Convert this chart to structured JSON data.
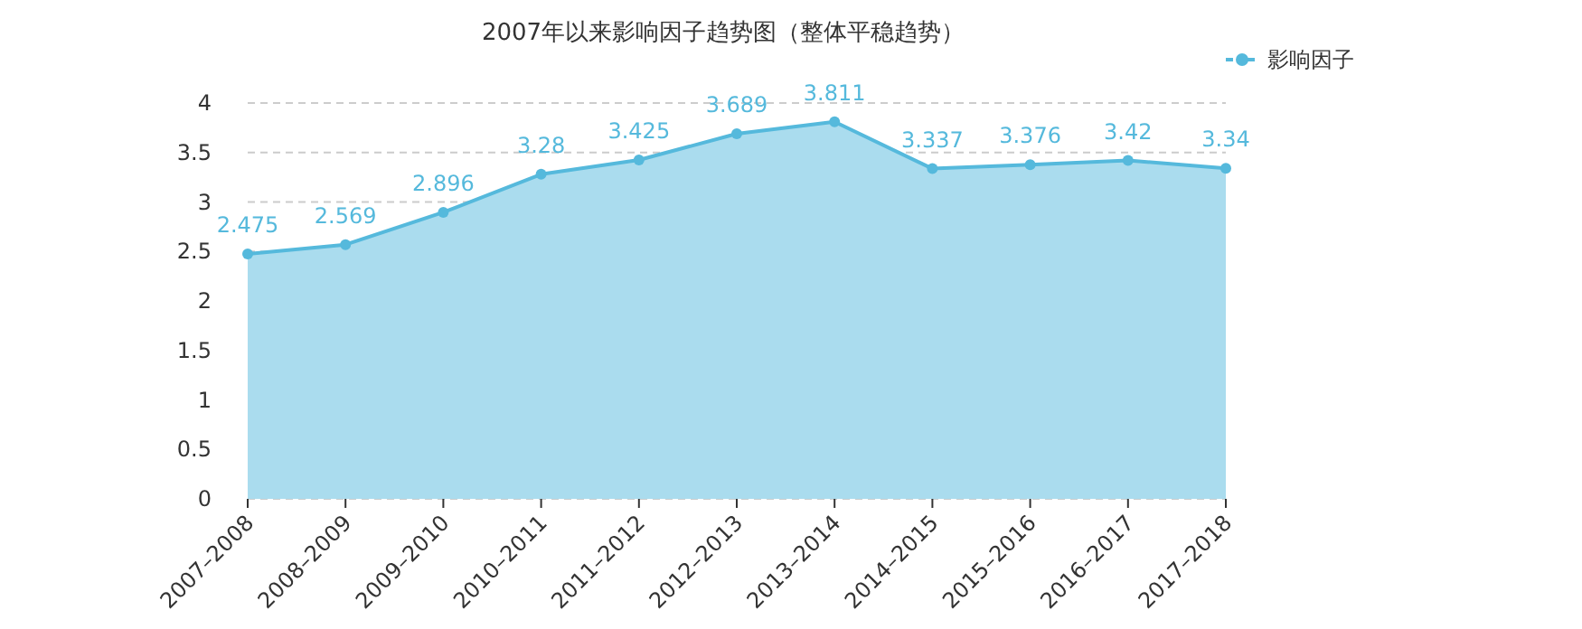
{
  "chart_data": {
    "type": "area",
    "title": "2007年以来影响因子趋势图（整体平稳趋势）",
    "categories": [
      "2007–2008",
      "2008–2009",
      "2009–2010",
      "2010–2011",
      "2011–2012",
      "2012–2013",
      "2013–2014",
      "2014–2015",
      "2015–2016",
      "2016–2017",
      "2017–2018"
    ],
    "series": [
      {
        "name": "影响因子",
        "color": "#55b9dc",
        "values": [
          2.475,
          2.569,
          2.896,
          3.28,
          3.425,
          3.689,
          3.811,
          3.337,
          3.376,
          3.42,
          3.34
        ]
      }
    ],
    "ylim": [
      0,
      4
    ],
    "yticks": [
      0,
      0.5,
      1,
      1.5,
      2,
      2.5,
      3,
      3.5,
      4
    ],
    "grid": "y",
    "legend": "top right",
    "marker": "circle",
    "data_labels": true
  }
}
